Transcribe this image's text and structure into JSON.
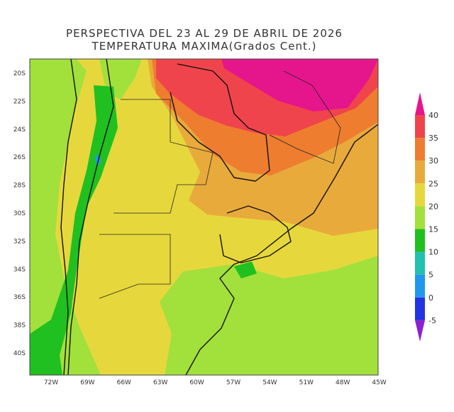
{
  "title": {
    "line1": "PERSPECTIVA DEL 23 AL 29 DE ABRIL DE 2026",
    "line2": "TEMPERATURA MAXIMA(Grados Cent.)"
  },
  "map": {
    "lat_labels": [
      "20S",
      "22S",
      "24S",
      "26S",
      "28S",
      "30S",
      "32S",
      "34S",
      "36S",
      "38S",
      "40S"
    ],
    "lon_labels": [
      "72W",
      "69W",
      "66W",
      "63W",
      "60W",
      "57W",
      "54W",
      "51W",
      "48W",
      "45W"
    ]
  },
  "colorbar": {
    "labels": [
      "40",
      "35",
      "30",
      "25",
      "20",
      "15",
      "10",
      "5",
      "0",
      "-5"
    ],
    "colors": [
      "#e5168c",
      "#f0444c",
      "#ee7d30",
      "#e9aa3c",
      "#e6d83c",
      "#a2e03c",
      "#20c020",
      "#22c0b0",
      "#2098f0",
      "#2234e4",
      "#8c20d0"
    ]
  }
}
